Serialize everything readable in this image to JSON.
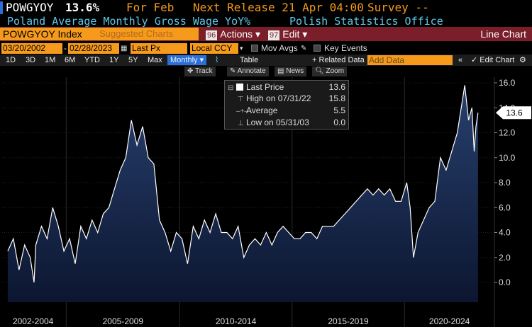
{
  "header": {
    "ticker": "POWGYOY",
    "value": "13.6%",
    "for_label": "For Feb",
    "next_release": "Next Release 21 Apr 04:00",
    "survey": "Survey --",
    "description": "Poland Average Monthly Gross Wage YoY%",
    "source": "Polish Statistics Office"
  },
  "toolbar": {
    "ticker_box": "POWGYOY Index",
    "suggested": "Suggested Charts",
    "actions_num": "96",
    "actions_label": "Actions ▾",
    "edit_num": "97",
    "edit_label": "Edit ▾",
    "chart_type": "Line Chart"
  },
  "controls": {
    "start_date": "03/20/2002",
    "end_date": "02/28/2023",
    "price_field": "Last Px",
    "currency": "Local CCY",
    "mov_avgs": "Mov Avgs",
    "key_events": "Key Events"
  },
  "periods": [
    "1D",
    "3D",
    "1M",
    "6M",
    "YTD",
    "1Y",
    "5Y",
    "Max"
  ],
  "frequency": "Monthly ▾",
  "view": {
    "table": "Table",
    "related": "+ Related Data",
    "add_data_placeholder": "Add Data",
    "edit_chart": "✓ Edit Chart"
  },
  "tools": [
    "Track",
    "Annotate",
    "News",
    "Zoom"
  ],
  "legend": {
    "last_label": "Last Price",
    "last_value": "13.6",
    "high_label": "High on 07/31/22",
    "high_value": "15.8",
    "avg_label": "Average",
    "avg_value": "5.5",
    "low_label": "Low on 05/31/03",
    "low_value": "0.0"
  },
  "colors": {
    "line": "#ffffff",
    "area_top": "#27406e",
    "area_bottom": "#0c1630",
    "accent_orange": "#f59a1b",
    "toolbar_red": "#7a1e2a",
    "desc_blue": "#5fc8e8"
  },
  "chart_data": {
    "type": "area",
    "title": "",
    "xlabel": "",
    "ylabel": "",
    "ylim": [
      -1.5,
      17
    ],
    "yticks": [
      0.0,
      2.0,
      4.0,
      6.0,
      8.0,
      10.0,
      12.0,
      14.0,
      16.0
    ],
    "ytick_labels": [
      "0.0",
      "2.0",
      "4.0",
      "6.0",
      "8.0",
      "10.0",
      "12.0",
      "14.0",
      "16.0"
    ],
    "x_categories": [
      "2002-2004",
      "2005-2009",
      "2010-2014",
      "2015-2019",
      "2020-2024"
    ],
    "last_value_tag": "13.6",
    "series": [
      {
        "x": [
          2002.25,
          2002.5,
          2002.75,
          2003.0,
          2003.25,
          2003.42,
          2003.5,
          2003.75,
          2004.0,
          2004.25,
          2004.5,
          2004.75,
          2005.0,
          2005.25,
          2005.5,
          2005.75,
          2006.0,
          2006.25,
          2006.5,
          2006.75,
          2007.0,
          2007.25,
          2007.5,
          2007.75,
          2008.0,
          2008.25,
          2008.5,
          2008.75,
          2009.0,
          2009.25,
          2009.5,
          2009.75,
          2010.0,
          2010.25,
          2010.5,
          2010.75,
          2011.0,
          2011.25,
          2011.5,
          2011.75,
          2012.0,
          2012.25,
          2012.5,
          2012.75,
          2013.0,
          2013.25,
          2013.5,
          2013.75,
          2014.0,
          2014.25,
          2014.5,
          2014.75,
          2015.0,
          2015.25,
          2015.5,
          2015.75,
          2016.0,
          2016.25,
          2016.5,
          2016.75,
          2017.0,
          2017.25,
          2017.5,
          2017.75,
          2018.0,
          2018.25,
          2018.5,
          2018.75,
          2019.0,
          2019.25,
          2019.5,
          2019.75,
          2020.0,
          2020.15,
          2020.3,
          2020.5,
          2020.75,
          2021.0,
          2021.25,
          2021.5,
          2021.75,
          2022.0,
          2022.25,
          2022.58,
          2022.75,
          2022.9,
          2023.0,
          2023.08,
          2023.17
        ],
        "y": [
          2.5,
          3.5,
          1.0,
          3.0,
          2.0,
          0.0,
          3.0,
          4.5,
          3.5,
          6.0,
          4.5,
          2.5,
          3.5,
          1.5,
          4.5,
          3.5,
          5.0,
          4.0,
          5.5,
          6.0,
          7.5,
          9.0,
          10.0,
          13.0,
          11.0,
          12.5,
          10.0,
          9.5,
          5.0,
          4.0,
          2.5,
          4.0,
          3.5,
          1.5,
          4.5,
          3.5,
          5.0,
          4.0,
          5.5,
          4.0,
          4.0,
          3.5,
          4.5,
          2.0,
          3.0,
          3.5,
          3.0,
          4.0,
          3.0,
          4.0,
          4.5,
          4.0,
          3.5,
          3.5,
          4.0,
          4.0,
          3.5,
          4.5,
          4.5,
          4.5,
          5.0,
          5.5,
          6.0,
          6.5,
          7.0,
          7.5,
          7.0,
          7.5,
          7.0,
          7.5,
          6.5,
          6.5,
          8.0,
          6.0,
          2.0,
          4.0,
          5.0,
          6.0,
          6.5,
          10.0,
          9.0,
          10.5,
          12.0,
          15.8,
          13.0,
          14.0,
          10.5,
          12.5,
          13.6
        ]
      }
    ]
  }
}
